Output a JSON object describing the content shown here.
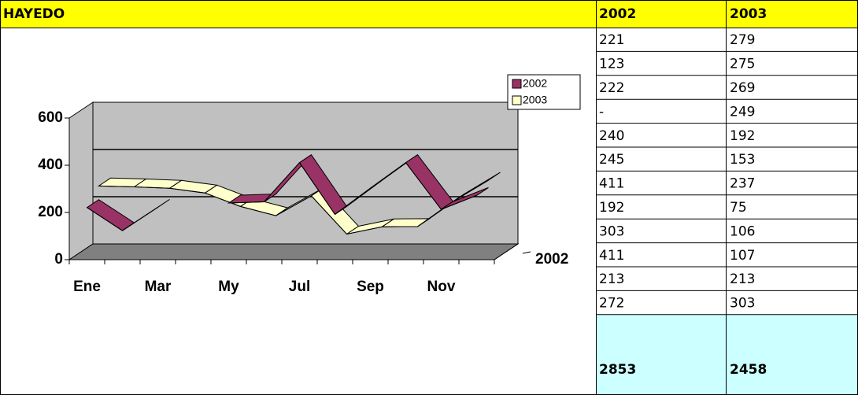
{
  "sheet_title": "HAYEDO",
  "table": {
    "columns": [
      "2002",
      "2003"
    ],
    "rows": [
      [
        "221",
        "279"
      ],
      [
        "123",
        "275"
      ],
      [
        "222",
        "269"
      ],
      [
        "-",
        "249"
      ],
      [
        "240",
        "192"
      ],
      [
        "245",
        "153"
      ],
      [
        "411",
        "237"
      ],
      [
        "192",
        "75"
      ],
      [
        "303",
        "106"
      ],
      [
        "411",
        "107"
      ],
      [
        "213",
        "213"
      ],
      [
        "272",
        "303"
      ]
    ],
    "totals": [
      "2853",
      "2458"
    ]
  },
  "chart_data": {
    "type": "line3d",
    "categories": [
      "Ene",
      null,
      "Mar",
      null,
      "My",
      null,
      "Jul",
      null,
      "Sep",
      null,
      "Nov",
      null
    ],
    "series": [
      {
        "name": "2002",
        "color": "#993366",
        "values": [
          221,
          123,
          222,
          null,
          240,
          245,
          411,
          192,
          303,
          411,
          213,
          272
        ]
      },
      {
        "name": "2003",
        "color": "#ffffcc",
        "values": [
          279,
          275,
          269,
          249,
          192,
          153,
          237,
          75,
          106,
          107,
          213,
          303
        ]
      }
    ],
    "ylim": [
      0,
      600
    ],
    "yticks": [
      0,
      200,
      400,
      600
    ],
    "grid": true,
    "depth_label": "2002",
    "legend": "right"
  }
}
